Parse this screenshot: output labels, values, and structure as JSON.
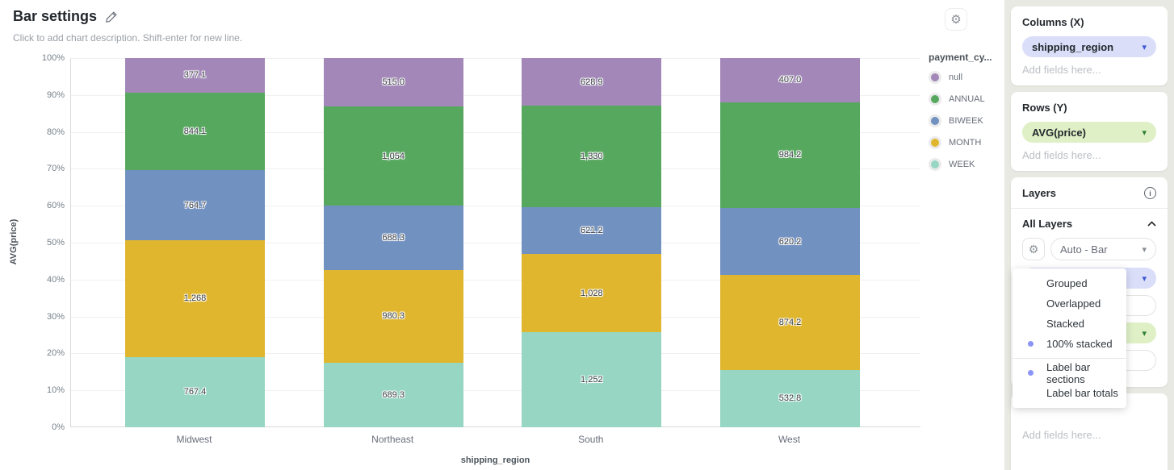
{
  "header": {
    "title": "Bar settings",
    "subtitle": "Click to add chart description. Shift-enter for new line."
  },
  "chart_data": {
    "type": "bar",
    "variant": "100% stacked",
    "categories": [
      "Midwest",
      "Northeast",
      "South",
      "West"
    ],
    "series": [
      {
        "name": "null",
        "color": "#a287b8",
        "values": [
          377.1,
          515.0,
          628.9,
          407.0
        ],
        "labels": [
          "377.1",
          "515.0",
          "628.9",
          "407.0"
        ]
      },
      {
        "name": "ANNUAL",
        "color": "#57a85f",
        "values": [
          844.1,
          1054,
          1330,
          984.2
        ],
        "labels": [
          "844.1",
          "1,054",
          "1,330",
          "984.2"
        ]
      },
      {
        "name": "BIWEEK",
        "color": "#7191c1",
        "values": [
          764.7,
          688.3,
          621.2,
          620.2
        ],
        "labels": [
          "764.7",
          "688.3",
          "621.2",
          "620.2"
        ]
      },
      {
        "name": "MONTH",
        "color": "#e0b62e",
        "values": [
          1268,
          980.3,
          1028,
          874.2
        ],
        "labels": [
          "1,268",
          "980.3",
          "1,028",
          "874.2"
        ]
      },
      {
        "name": "WEEK",
        "color": "#96d6c3",
        "values": [
          767.4,
          689.3,
          1252,
          532.8
        ],
        "labels": [
          "767.4",
          "689.3",
          "1,252",
          "532.8"
        ]
      }
    ],
    "stack_order_bottom_to_top": [
      "WEEK",
      "MONTH",
      "BIWEEK",
      "ANNUAL",
      "null"
    ],
    "xlabel": "shipping_region",
    "ylabel": "AVG(price)",
    "y_ticks": [
      "100%",
      "90%",
      "80%",
      "70%",
      "60%",
      "50%",
      "40%",
      "30%",
      "20%",
      "10%",
      "0%"
    ],
    "legend_title": "payment_cy...",
    "legend_position": "right",
    "grid": true
  },
  "sidebar": {
    "columns_x": {
      "title": "Columns (X)",
      "field": "shipping_region",
      "placeholder": "Add fields here..."
    },
    "rows_y": {
      "title": "Rows (Y)",
      "field": "AVG(price)",
      "placeholder": "Add fields here..."
    },
    "layers": {
      "title": "Layers",
      "all_layers": "All Layers",
      "mode": "Auto - Bar"
    },
    "bottom_card": {
      "placeholder": "Add fields here..."
    }
  },
  "layers_menu": {
    "group1": [
      {
        "label": "Grouped",
        "selected": false
      },
      {
        "label": "Overlapped",
        "selected": false
      },
      {
        "label": "Stacked",
        "selected": false
      },
      {
        "label": "100% stacked",
        "selected": true
      }
    ],
    "group2": [
      {
        "label": "Label bar sections",
        "selected": true
      },
      {
        "label": "Label bar totals",
        "selected": false
      }
    ]
  },
  "colors": {
    "sidebar_bg": "#e9e9e4",
    "pill_lavender_bg": "#dadef9",
    "pill_lavender_arrow": "#3b55d6",
    "pill_green_bg": "#dff0c6",
    "pill_green_arrow": "#2e7d32",
    "menu_dot": "#8b95f6"
  }
}
